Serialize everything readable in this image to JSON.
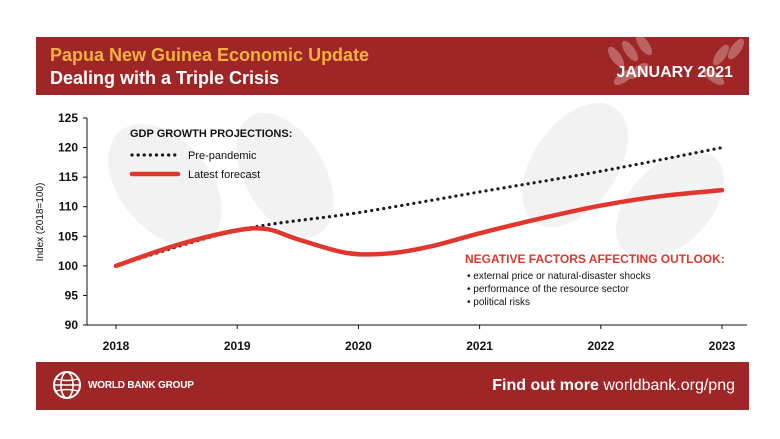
{
  "header": {
    "title_line1": "Papua New Guinea Economic Update",
    "title_line2": "Dealing with a Triple Crisis",
    "date": "JANUARY 2021"
  },
  "footer": {
    "org": "WORLD BANK GROUP",
    "find_out_bold": "Find out more",
    "find_out_url": "worldbank.org/png"
  },
  "colors": {
    "brand_red": "#9e2626",
    "title_orange": "#f5b041",
    "forecast_red": "#e0362c",
    "pre_pandemic_dots": "#1a1a1a",
    "neg_title": "#d63a2f"
  },
  "annotations": {
    "negative_title": "NEGATIVE FACTORS AFFECTING OUTLOOK:",
    "negative_items": [
      "• external price or natural-disaster shocks",
      "• performance of the resource sector",
      "• political risks"
    ]
  },
  "chart_data": {
    "type": "line",
    "legend_title": "GDP GROWTH PROJECTIONS:",
    "ylabel": "Index (2018=100)",
    "xlabel": "",
    "ylim": [
      90,
      125
    ],
    "yticks": [
      90,
      95,
      100,
      105,
      110,
      115,
      120,
      125
    ],
    "xlim": [
      2018,
      2023
    ],
    "xticks": [
      "2018",
      "2019",
      "2020",
      "2021",
      "2022",
      "2023"
    ],
    "grid": false,
    "legend_position": "top-left",
    "series": [
      {
        "name": "Pre-pandemic",
        "style": "dotted",
        "color": "#1a1a1a",
        "x": [
          2018,
          2019,
          2020,
          2021,
          2022,
          2023
        ],
        "y": [
          100,
          106,
          109,
          112.5,
          116,
          120
        ]
      },
      {
        "name": "Latest forecast",
        "style": "solid",
        "color": "#e0362c",
        "x": [
          2018,
          2018.5,
          2019,
          2019.25,
          2019.5,
          2019.9,
          2020.25,
          2020.6,
          2021,
          2021.5,
          2022,
          2022.5,
          2023
        ],
        "y": [
          100,
          103.5,
          106,
          106.2,
          104.5,
          102.2,
          102.1,
          103.3,
          105.5,
          108,
          110.2,
          111.8,
          112.8
        ]
      }
    ]
  }
}
